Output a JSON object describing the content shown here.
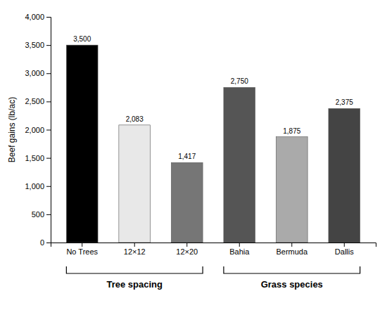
{
  "chart_data": {
    "type": "bar",
    "ylabel": "Beef gains (lb/ac)",
    "categories": [
      "No Trees",
      "12×12",
      "12×20",
      "Bahia",
      "Bermuda",
      "Dallis"
    ],
    "values": [
      3500,
      2083,
      1417,
      2750,
      1875,
      2375
    ],
    "value_labels": [
      "3,500",
      "2,083",
      "1,417",
      "2,750",
      "1,875",
      "2,375"
    ],
    "colors": [
      "#000000",
      "#e8e8e8",
      "#767676",
      "#555555",
      "#aaaaaa",
      "#444444"
    ],
    "data_labels": true,
    "ylim": [
      0,
      4000
    ],
    "yticks": [
      0,
      500,
      {
        "value": 1000,
        "label": "1,000"
      },
      {
        "value": 1500,
        "label": "1,500"
      },
      {
        "value": 2000,
        "label": "2,000"
      },
      {
        "value": 2500,
        "label": "2,500"
      },
      {
        "value": 3000,
        "label": "3,000"
      },
      {
        "value": 3500,
        "label": "3,500"
      },
      {
        "value": 4000,
        "label": "4,000"
      }
    ],
    "grid": false,
    "annotations": [
      {
        "text": "Tree spacing",
        "categories": [
          "No Trees",
          "12×20"
        ]
      },
      {
        "text": "Grass species",
        "categories": [
          "Bahia",
          "Dallis"
        ]
      }
    ]
  }
}
